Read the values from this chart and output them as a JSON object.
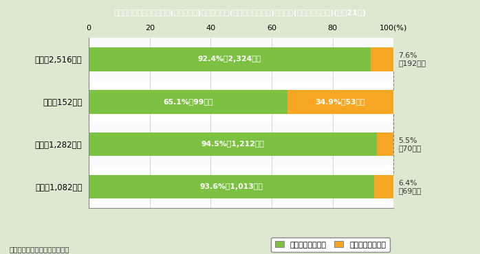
{
  "title": "第１－６－３図　配偶者間(内縁を含む)における犯罪(殺人，傷害，暴行)の被害者(検挙件数の割合)(平成21年)",
  "categories": [
    "総数（2,516件）",
    "殺人（152件）",
    "傷害（1,282件）",
    "暴行（1,082件）"
  ],
  "female_pct": [
    92.4,
    65.1,
    94.5,
    93.6
  ],
  "male_pct": [
    7.6,
    34.9,
    5.5,
    6.4
  ],
  "female_labels": [
    "92.4%（2,324件）",
    "65.1%（99件）",
    "94.5%（1,212件）",
    "93.6%（1,013件）"
  ],
  "male_labels_outside": [
    "7.6%\n（192件）",
    "",
    "5.5%\n（70件）",
    "6.4%\n（69件）"
  ],
  "male_label_inside": "34.9%（53件）",
  "color_female": "#7DC142",
  "color_male": "#F5A623",
  "color_title_bg": "#7B6C45",
  "color_bg": "#DDE8D0",
  "color_chart_bg": "#FFFFFF",
  "color_chart_border": "#AAAAAA",
  "xticks": [
    0,
    20,
    40,
    60,
    80,
    100
  ],
  "bar_height": 0.55,
  "footnote": "（備考）警察庁資料より作成。",
  "legend_female": "女性配偶者の割合",
  "legend_male": "男性配偶者の割合"
}
